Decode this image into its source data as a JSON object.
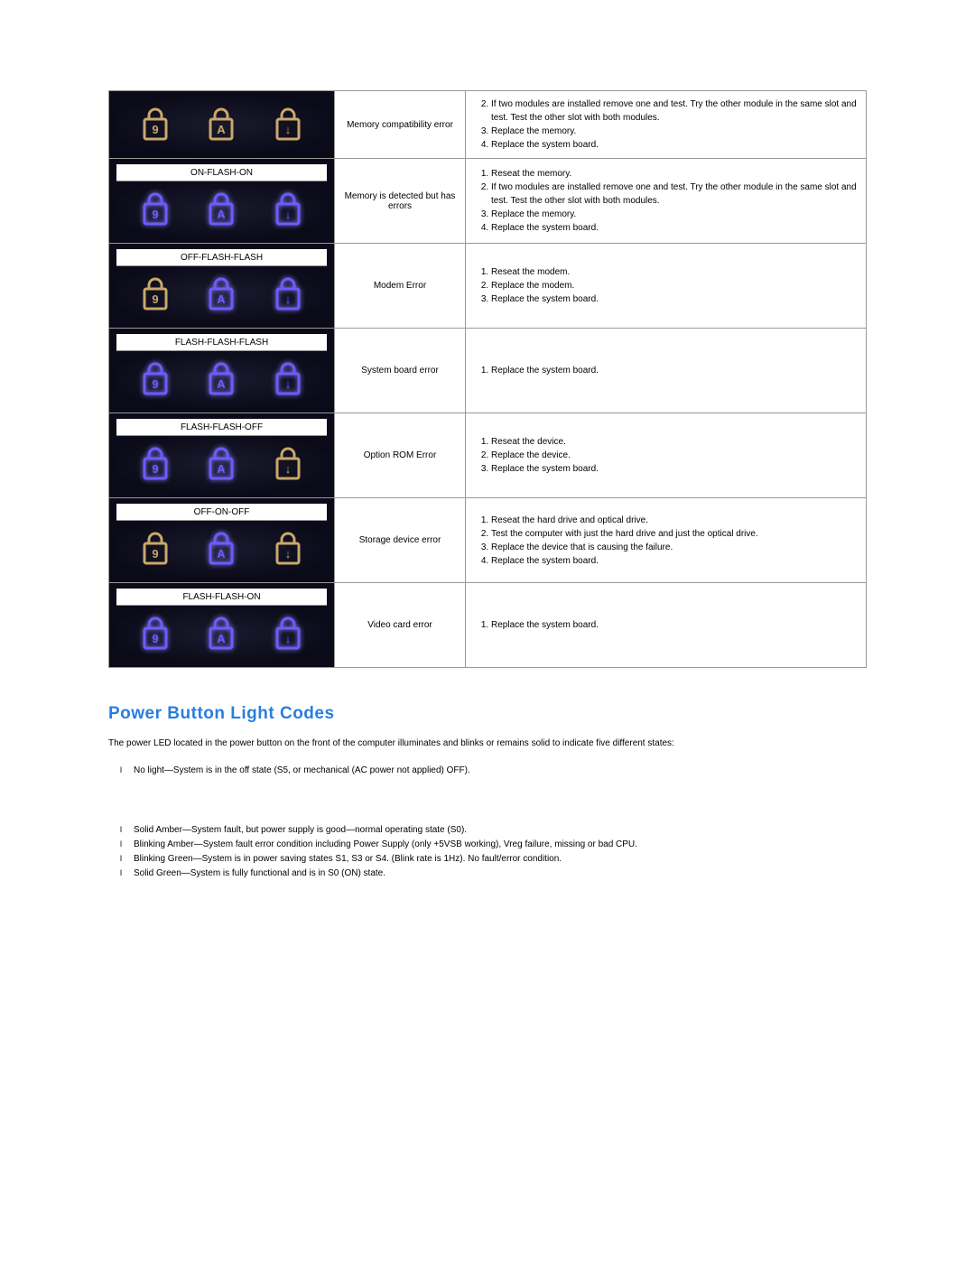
{
  "colors": {
    "border": "#999999",
    "heading": "#2a7de1",
    "text": "#000000",
    "iconBg": "#0a0a18",
    "lit": "#6b5cff",
    "litGlow": "#8a7cff",
    "unlit": "#c9a86a"
  },
  "diagnosticsTable": {
    "rows": [
      {
        "patternLabel": "",
        "showLabel": false,
        "icons": [
          "unlit",
          "unlit",
          "unlit"
        ],
        "errorName": "Memory compatibility error",
        "startNum": 2,
        "steps": [
          "If two modules are installed remove one and test. Try the other module in the same slot and test. Test the other slot with both modules.",
          "Replace the memory.",
          "Replace the system board."
        ]
      },
      {
        "patternLabel": "ON-FLASH-ON",
        "showLabel": true,
        "icons": [
          "lit",
          "lit",
          "lit"
        ],
        "errorName": "Memory is detected but has errors",
        "startNum": 1,
        "steps": [
          "Reseat the memory.",
          "If two modules are installed remove one and test. Try the other module in the same slot and test. Test the other slot with both modules.",
          "Replace the memory.",
          "Replace the system board."
        ]
      },
      {
        "patternLabel": "OFF-FLASH-FLASH",
        "showLabel": true,
        "icons": [
          "unlit",
          "lit",
          "lit"
        ],
        "errorName": "Modem Error",
        "startNum": 1,
        "steps": [
          "Reseat the modem.",
          "Replace the modem.",
          "Replace the system board."
        ]
      },
      {
        "patternLabel": "FLASH-FLASH-FLASH",
        "showLabel": true,
        "icons": [
          "lit",
          "lit",
          "lit"
        ],
        "errorName": "System board error",
        "startNum": 1,
        "steps": [
          "Replace the system board."
        ]
      },
      {
        "patternLabel": "FLASH-FLASH-OFF",
        "showLabel": true,
        "icons": [
          "lit",
          "lit",
          "unlit"
        ],
        "errorName": "Option ROM Error",
        "startNum": 1,
        "steps": [
          "Reseat the device.",
          "Replace the device.",
          "Replace the system board."
        ]
      },
      {
        "patternLabel": "OFF-ON-OFF",
        "showLabel": true,
        "icons": [
          "unlit",
          "lit",
          "unlit"
        ],
        "errorName": "Storage device error",
        "startNum": 1,
        "steps": [
          "Reseat the hard drive and optical drive.",
          "Test the computer with just the hard drive and just the optical drive.",
          "Replace the device that is causing the failure.",
          "Replace the system board."
        ]
      },
      {
        "patternLabel": "FLASH-FLASH-ON",
        "showLabel": true,
        "icons": [
          "lit",
          "lit",
          "lit"
        ],
        "errorName": "Video card error",
        "startNum": 1,
        "steps": [
          "Replace the system board."
        ]
      }
    ]
  },
  "powerButtonSection": {
    "heading": "Power Button Light Codes",
    "intro": "The power LED located in the power button on the front of the computer illuminates and blinks or remains solid to indicate five different states:",
    "block1": [
      "No light—System is in the off state (S5, or mechanical (AC power not applied) OFF)."
    ],
    "block2": [
      "Solid Amber—System fault, but power supply is good—normal operating state (S0).",
      "Blinking Amber—System fault error condition including Power Supply (only +5VSB working), Vreg failure, missing or bad CPU.",
      "Blinking Green—System is in power saving states S1, S3 or S4. (Blink rate is 1Hz). No fault/error condition.",
      "Solid Green—System is fully functional and is in S0 (ON) state."
    ]
  },
  "iconGlyphs": [
    "9",
    "A",
    "↓"
  ]
}
